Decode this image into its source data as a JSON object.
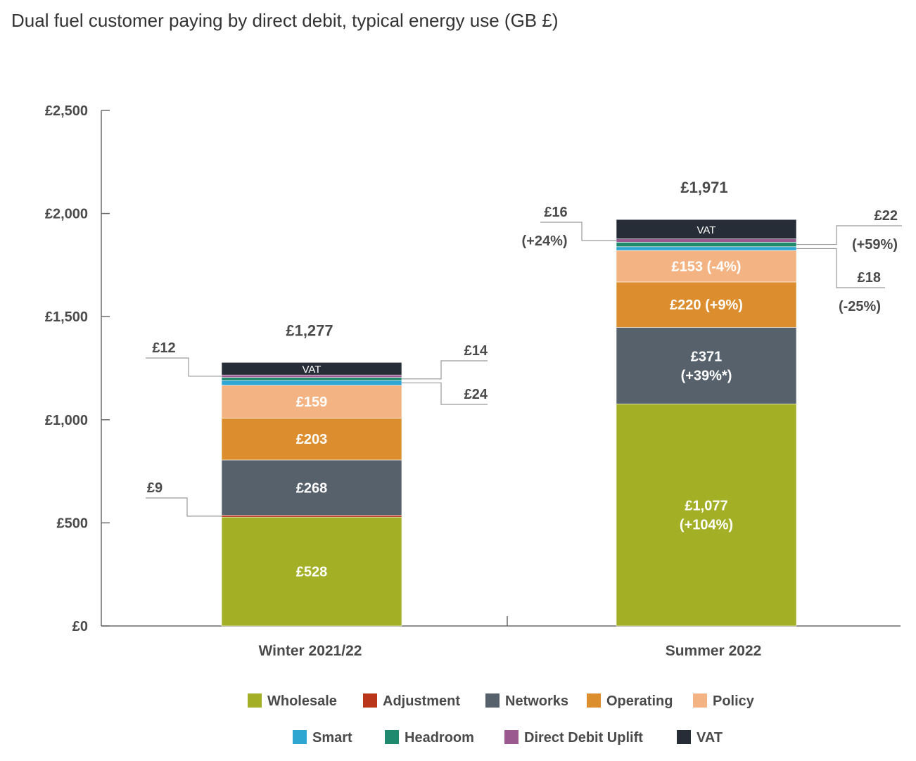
{
  "title": "Dual fuel customer paying by direct debit, typical energy use (GB £)",
  "colors": {
    "Wholesale": "#a3b026",
    "Adjustment": "#b9361b",
    "Networks": "#56616b",
    "Operating": "#dc8e2f",
    "Policy": "#f4b382",
    "Smart": "#2ea6d1",
    "Headroom": "#1f8a6e",
    "Direct Debit Uplift": "#9a5a8f",
    "VAT": "#262d37"
  },
  "chart_data": {
    "type": "bar",
    "stacked": true,
    "title": "Dual fuel customer paying by direct debit, typical energy use (GB £)",
    "categories": [
      "Winter 2021/22",
      "Summer 2022"
    ],
    "series": [
      {
        "name": "Wholesale",
        "values": [
          528,
          1077
        ]
      },
      {
        "name": "Adjustment",
        "values": [
          9,
          0
        ]
      },
      {
        "name": "Networks",
        "values": [
          268,
          371
        ]
      },
      {
        "name": "Operating",
        "values": [
          203,
          220
        ]
      },
      {
        "name": "Policy",
        "values": [
          159,
          153
        ]
      },
      {
        "name": "Smart",
        "values": [
          24,
          18
        ]
      },
      {
        "name": "Headroom",
        "values": [
          14,
          22
        ]
      },
      {
        "name": "Direct Debit Uplift",
        "values": [
          12,
          16
        ]
      },
      {
        "name": "VAT",
        "values": [
          61,
          94
        ]
      }
    ],
    "totals": [
      "£1,277",
      "£1,971"
    ],
    "segment_labels": [
      {
        "cat": 0,
        "series": "Wholesale",
        "lines": [
          "£528"
        ]
      },
      {
        "cat": 0,
        "series": "Networks",
        "lines": [
          "£268"
        ]
      },
      {
        "cat": 0,
        "series": "Operating",
        "lines": [
          "£203"
        ]
      },
      {
        "cat": 0,
        "series": "Policy",
        "lines": [
          "£159"
        ]
      },
      {
        "cat": 0,
        "series": "VAT",
        "lines": [
          "VAT"
        ]
      },
      {
        "cat": 1,
        "series": "Wholesale",
        "lines": [
          "£1,077",
          "(+104%)"
        ]
      },
      {
        "cat": 1,
        "series": "Networks",
        "lines": [
          "£371",
          "(+39%*)"
        ]
      },
      {
        "cat": 1,
        "series": "Operating",
        "lines": [
          "£220 (+9%)"
        ]
      },
      {
        "cat": 1,
        "series": "Policy",
        "lines": [
          "£153 (-4%)"
        ]
      },
      {
        "cat": 1,
        "series": "VAT",
        "lines": [
          "VAT"
        ]
      }
    ],
    "callouts": [
      {
        "cat": 0,
        "series": "Adjustment",
        "side": "left",
        "lines": [
          "£9"
        ]
      },
      {
        "cat": 0,
        "series": "Direct Debit Uplift",
        "side": "left",
        "lines": [
          "£12"
        ]
      },
      {
        "cat": 0,
        "series": "Headroom",
        "side": "right",
        "lines": [
          "£14"
        ]
      },
      {
        "cat": 0,
        "series": "Smart",
        "side": "right",
        "lines": [
          "£24"
        ]
      },
      {
        "cat": 1,
        "series": "Direct Debit Uplift",
        "side": "left",
        "lines": [
          "£16",
          "(+24%)"
        ]
      },
      {
        "cat": 1,
        "series": "Headroom",
        "side": "right",
        "lines": [
          "£22",
          "(+59%)"
        ]
      },
      {
        "cat": 1,
        "series": "Smart",
        "side": "right",
        "lines": [
          "£18",
          "(-25%)"
        ]
      }
    ],
    "y_ticks": [
      "£0",
      "£500",
      "£1,000",
      "£1,500",
      "£2,000",
      "£2,500"
    ],
    "ylim": [
      0,
      2500
    ],
    "xlabel": "",
    "ylabel": "",
    "legend": [
      "Wholesale",
      "Adjustment",
      "Networks",
      "Operating",
      "Policy",
      "Smart",
      "Headroom",
      "Direct Debit Uplift",
      "VAT"
    ],
    "legend_position": "bottom"
  }
}
